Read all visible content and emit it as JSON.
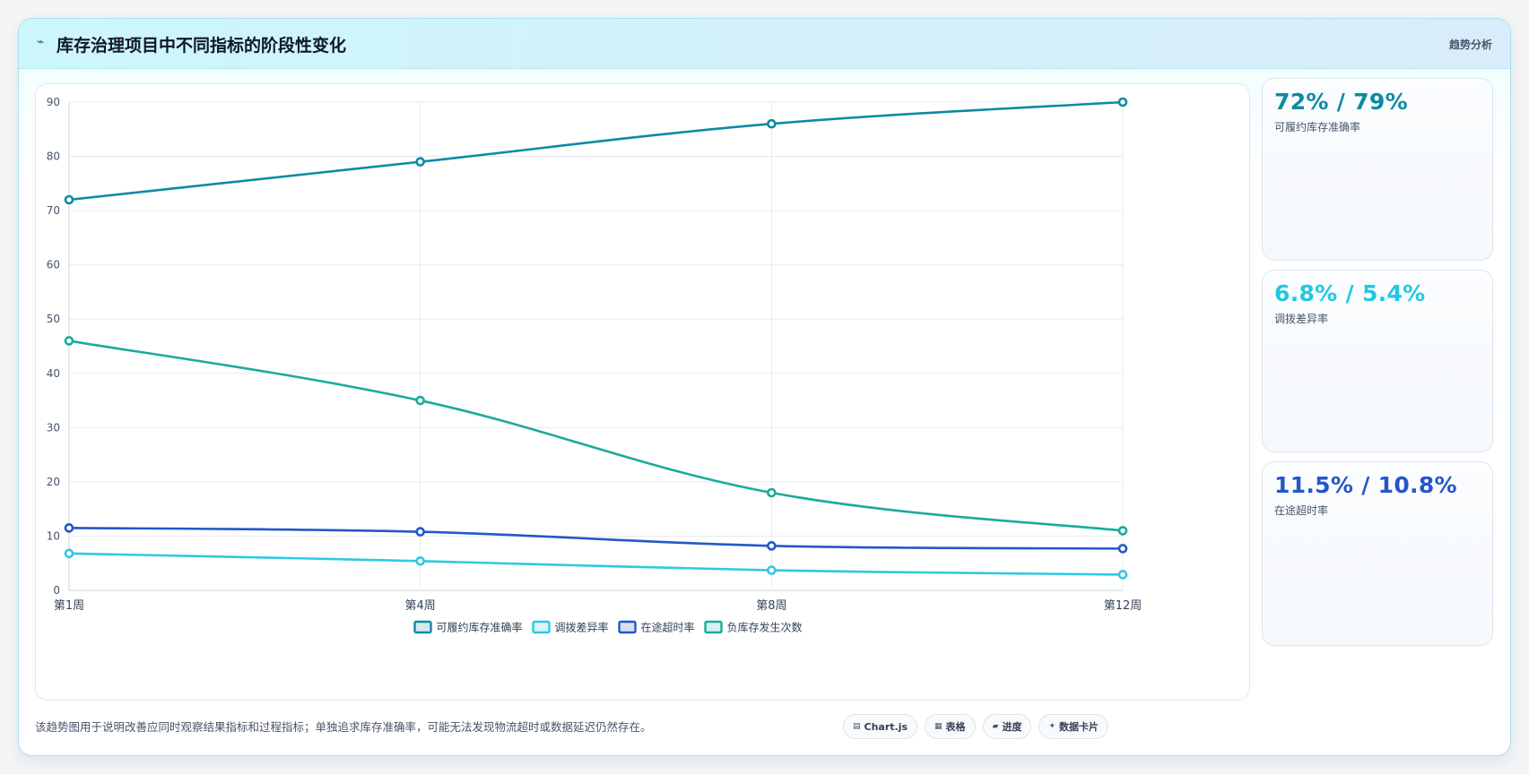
{
  "header": {
    "title": "库存治理项目中不同指标的阶段性变化",
    "tag": "趋势分析"
  },
  "stats": [
    {
      "value": "72% / 79%",
      "label": "可履约库存准确率",
      "color": "#0e8aa3"
    },
    {
      "value": "6.8% / 5.4%",
      "label": "调拨差异率",
      "color": "#22c8e0"
    },
    {
      "value": "11.5% / 10.8%",
      "label": "在途超时率",
      "color": "#2457c9"
    }
  ],
  "footer": {
    "note": "该趋势图用于说明改善应同时观察结果指标和过程指标；单独追求库存准确率，可能无法发现物流超时或数据延迟仍然存在。",
    "pills": [
      {
        "icon": "chart-icon",
        "glyph": "▤",
        "label": "Chart.js"
      },
      {
        "icon": "table-icon",
        "glyph": "▦",
        "label": "表格"
      },
      {
        "icon": "progress-icon",
        "glyph": "▰",
        "label": "进度"
      },
      {
        "icon": "data-card-icon",
        "glyph": "✦",
        "label": "数据卡片"
      }
    ]
  },
  "chart_data": {
    "type": "line",
    "categories": [
      "第1周",
      "第4周",
      "第8周",
      "第12周"
    ],
    "series": [
      {
        "name": "可履约库存准确率",
        "values": [
          72,
          79,
          86,
          90
        ],
        "color": "#0e8aa3"
      },
      {
        "name": "调拨差异率",
        "values": [
          6.8,
          5.4,
          3.7,
          2.9
        ],
        "color": "#2ec9e2"
      },
      {
        "name": "在途超时率",
        "values": [
          11.5,
          10.8,
          8.2,
          7.7
        ],
        "color": "#2457c9"
      },
      {
        "name": "负库存发生次数",
        "values": [
          46,
          35,
          18,
          11
        ],
        "color": "#1aab9b"
      }
    ],
    "ylim": [
      0,
      90
    ],
    "yticks": [
      0,
      10,
      20,
      30,
      40,
      50,
      60,
      70,
      80,
      90
    ],
    "grid": true,
    "legend": "bottom"
  }
}
